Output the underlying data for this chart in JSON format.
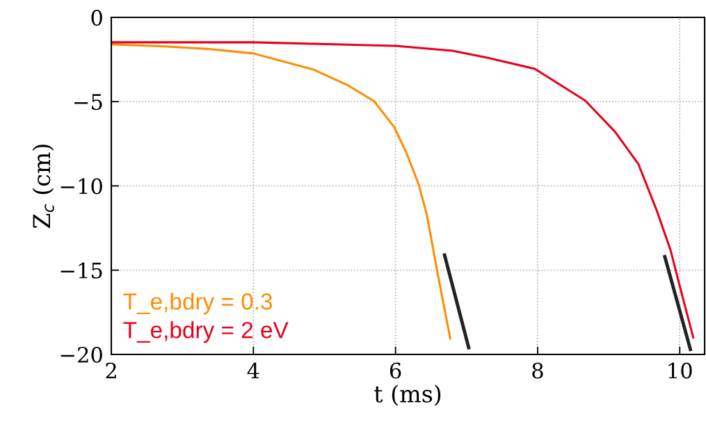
{
  "chart_data": {
    "type": "line",
    "xlabel": "t (ms)",
    "ylabel": "Z$_{c}$ (cm)",
    "xlim": [
      2,
      10.35
    ],
    "ylim": [
      -20,
      0
    ],
    "xticks": [
      2,
      4,
      6,
      8,
      10
    ],
    "yticks": [
      -20,
      -15,
      -10,
      -5,
      0
    ],
    "grid": true,
    "legend": "bottom left",
    "line_style": "solid",
    "marker": "none",
    "series": [
      {
        "name": "T_e,bdry = 0.3",
        "color": "#ff8c00",
        "x": [
          2,
          2.75,
          3.37,
          4,
          4.84,
          5.33,
          5.7,
          5.98,
          6.15,
          6.33,
          6.44,
          6.58,
          6.68,
          6.77
        ],
        "values": [
          -1.6,
          -1.72,
          -1.88,
          -2.14,
          -3.09,
          -4.03,
          -4.98,
          -6.5,
          -8.0,
          -9.96,
          -11.7,
          -14.9,
          -17.1,
          -19.05
        ]
      },
      {
        "name": "T_e,bdry = 2 eV",
        "color": "#e8001c",
        "x": [
          2,
          4,
          6,
          6.8,
          7.29,
          7.96,
          8.67,
          9.09,
          9.42,
          9.68,
          9.87,
          10.01,
          10.19
        ],
        "values": [
          -1.48,
          -1.48,
          -1.69,
          -1.98,
          -2.39,
          -3.05,
          -4.94,
          -6.79,
          -8.72,
          -11.5,
          -13.8,
          -16.1,
          -19.0
        ]
      },
      {
        "color": "#222222",
        "x": [
          6.69,
          7.03
        ],
        "values": [
          -14.1,
          -19.6
        ]
      },
      {
        "color": "#222222",
        "x": [
          9.79,
          10.15
        ],
        "values": [
          -14.2,
          -19.7
        ]
      }
    ]
  }
}
